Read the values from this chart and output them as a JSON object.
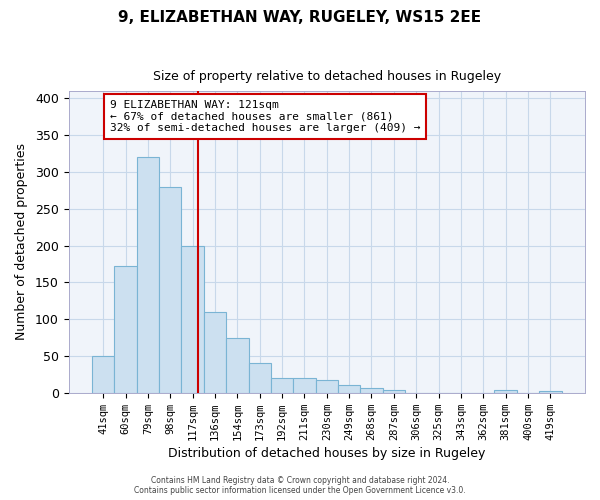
{
  "title1": "9, ELIZABETHAN WAY, RUGELEY, WS15 2EE",
  "title2": "Size of property relative to detached houses in Rugeley",
  "xlabel": "Distribution of detached houses by size in Rugeley",
  "ylabel": "Number of detached properties",
  "bar_labels": [
    "41sqm",
    "60sqm",
    "79sqm",
    "98sqm",
    "117sqm",
    "136sqm",
    "154sqm",
    "173sqm",
    "192sqm",
    "211sqm",
    "230sqm",
    "249sqm",
    "268sqm",
    "287sqm",
    "306sqm",
    "325sqm",
    "343sqm",
    "362sqm",
    "381sqm",
    "400sqm",
    "419sqm"
  ],
  "bar_heights": [
    50,
    172,
    320,
    280,
    200,
    110,
    75,
    40,
    20,
    20,
    18,
    10,
    6,
    4,
    0,
    0,
    0,
    0,
    4,
    0,
    2
  ],
  "bar_color": "#cce0f0",
  "bar_edge_color": "#7ab4d4",
  "vline_color": "#cc0000",
  "annotation_title": "9 ELIZABETHAN WAY: 121sqm",
  "annotation_line1": "← 67% of detached houses are smaller (861)",
  "annotation_line2": "32% of semi-detached houses are larger (409) →",
  "annotation_box_color": "white",
  "annotation_box_edge": "#cc0000",
  "ylim": [
    0,
    410
  ],
  "yticks": [
    0,
    50,
    100,
    150,
    200,
    250,
    300,
    350,
    400
  ],
  "footer1": "Contains HM Land Registry data © Crown copyright and database right 2024.",
  "footer2": "Contains public sector information licensed under the Open Government Licence v3.0.",
  "bg_color": "#f0f4fa",
  "grid_color": "#c8d8ea"
}
